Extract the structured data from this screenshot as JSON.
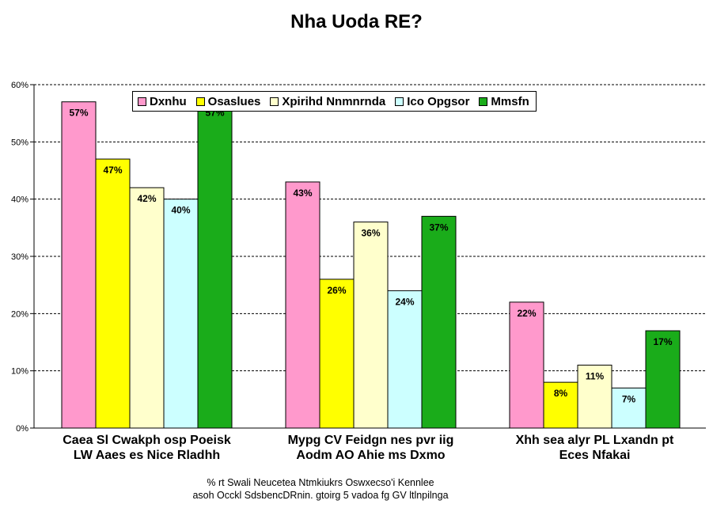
{
  "chart_data": {
    "type": "bar",
    "title": "Nha Uoda RE?",
    "categories": [
      [
        "Caea Sl Cwakph osp Poeisk",
        "LW Aaes es Nice Rladhh"
      ],
      [
        "Mypg CV Feidgn nes pvr iig",
        "Aodm AO Ahie ms Dxmo"
      ],
      [
        "Xhh sea alyr PL Lxandn pt",
        "Eces Nfakai"
      ]
    ],
    "series": [
      {
        "name": "Dxnhu",
        "color": "#ff99cc",
        "values": [
          57,
          43,
          22
        ]
      },
      {
        "name": "Osaslues",
        "color": "#ffff00",
        "values": [
          47,
          26,
          8
        ]
      },
      {
        "name": "Xpirihd Nnmnrnda",
        "color": "#ffffcc",
        "values": [
          42,
          36,
          11
        ]
      },
      {
        "name": "Ico Opgsor",
        "color": "#ccffff",
        "values": [
          40,
          24,
          7
        ]
      },
      {
        "name": "Mmsfn",
        "color": "#1aac1a",
        "values": [
          57,
          37,
          17
        ]
      }
    ],
    "value_suffix": "%",
    "ylim": [
      0,
      60
    ],
    "yticks": [
      0,
      10,
      20,
      30,
      40,
      50,
      60
    ],
    "ytick_labels": [
      "0%",
      "10%",
      "20%",
      "30%",
      "40%",
      "50%",
      "60%"
    ],
    "grid": true,
    "legend_position": "top-left, inside plot"
  },
  "footnote": [
    "% rt Swali Neucetea Ntmkiukrs Oswxecso'i Kennlee",
    "asoh Occkl SdsbencDRnin. gtoirg 5 vadoa fg GV ltlnpilnga"
  ]
}
